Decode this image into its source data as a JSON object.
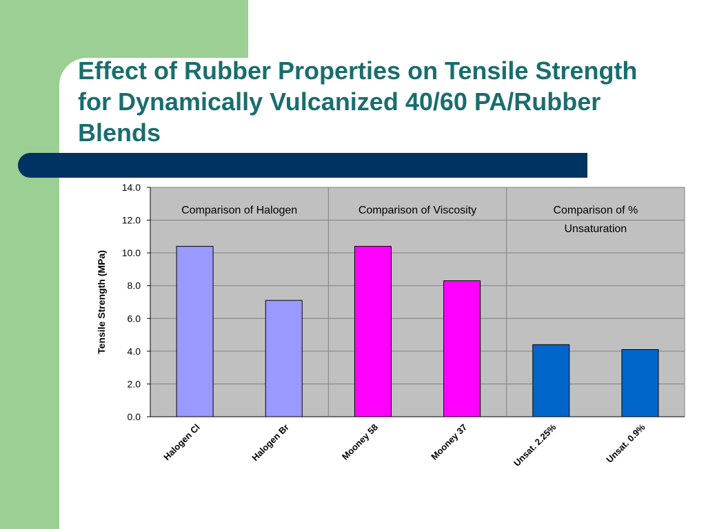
{
  "slide": {
    "title": "Effect of Rubber Properties on Tensile Strength for Dynamically Vulcanized 40/60 PA/Rubber Blends"
  },
  "colors": {
    "background_green": "#9bcf94",
    "title_text": "#1a6d6d",
    "title_bar": "#003262",
    "plot_area": "#c0c0c0"
  },
  "chart_data": {
    "type": "bar",
    "categories": [
      "Halogen Cl",
      "Halogen Br",
      "Mooney 58",
      "Mooney 37",
      "Unsat. 2.25%",
      "Unsat. 0.9%"
    ],
    "values": [
      10.4,
      7.1,
      10.4,
      8.3,
      4.4,
      4.1
    ],
    "bar_colors": [
      "#9999ff",
      "#9999ff",
      "#ff00ff",
      "#ff00ff",
      "#0066cc",
      "#0066cc"
    ],
    "ylabel": "Tensile Strength (MPa)",
    "ylim": [
      0,
      14
    ],
    "yticks": [
      "0.0",
      "2.0",
      "4.0",
      "6.0",
      "8.0",
      "10.0",
      "12.0",
      "14.0"
    ],
    "grid": true,
    "groups": [
      {
        "label_lines": [
          "Comparison of Halogen"
        ],
        "categories": 2
      },
      {
        "label_lines": [
          "Comparison of Viscosity"
        ],
        "categories": 2
      },
      {
        "label_lines": [
          "Comparison of %",
          "Unsaturation"
        ],
        "categories": 2
      }
    ]
  }
}
